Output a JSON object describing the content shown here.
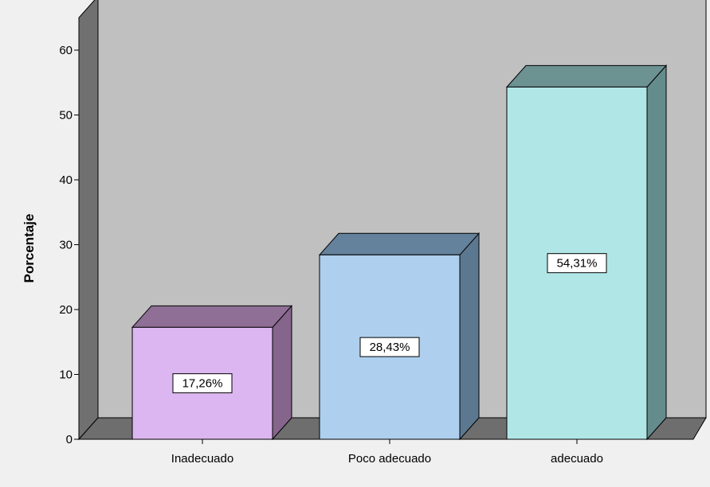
{
  "chart_data": {
    "type": "bar",
    "categories": [
      "Inadecuado",
      "Poco adecuado",
      "adecuado"
    ],
    "values": [
      17.26,
      28.43,
      54.31
    ],
    "data_labels": [
      "17,26%",
      "28,43%",
      "54,31%"
    ],
    "title": "",
    "xlabel": "",
    "ylabel": "Porcentaje",
    "ylim": [
      0,
      65
    ],
    "yticks": [
      "0",
      "10",
      "20",
      "30",
      "40",
      "50",
      "60"
    ],
    "grid": false,
    "legend": "none",
    "style": "3d"
  },
  "colors": {
    "background": "#f0f0f0",
    "plot_back": "#c0c0c0",
    "plot_floor": "#6e6e6e",
    "plot_side": "#707070",
    "bars": [
      {
        "front": "#dcb6f0",
        "top": "#8f6f96",
        "side": "#86658c"
      },
      {
        "front": "#aecfee",
        "top": "#64829c",
        "side": "#5c7890"
      },
      {
        "front": "#b1e6e6",
        "top": "#6c9292",
        "side": "#658c8c"
      }
    ]
  }
}
